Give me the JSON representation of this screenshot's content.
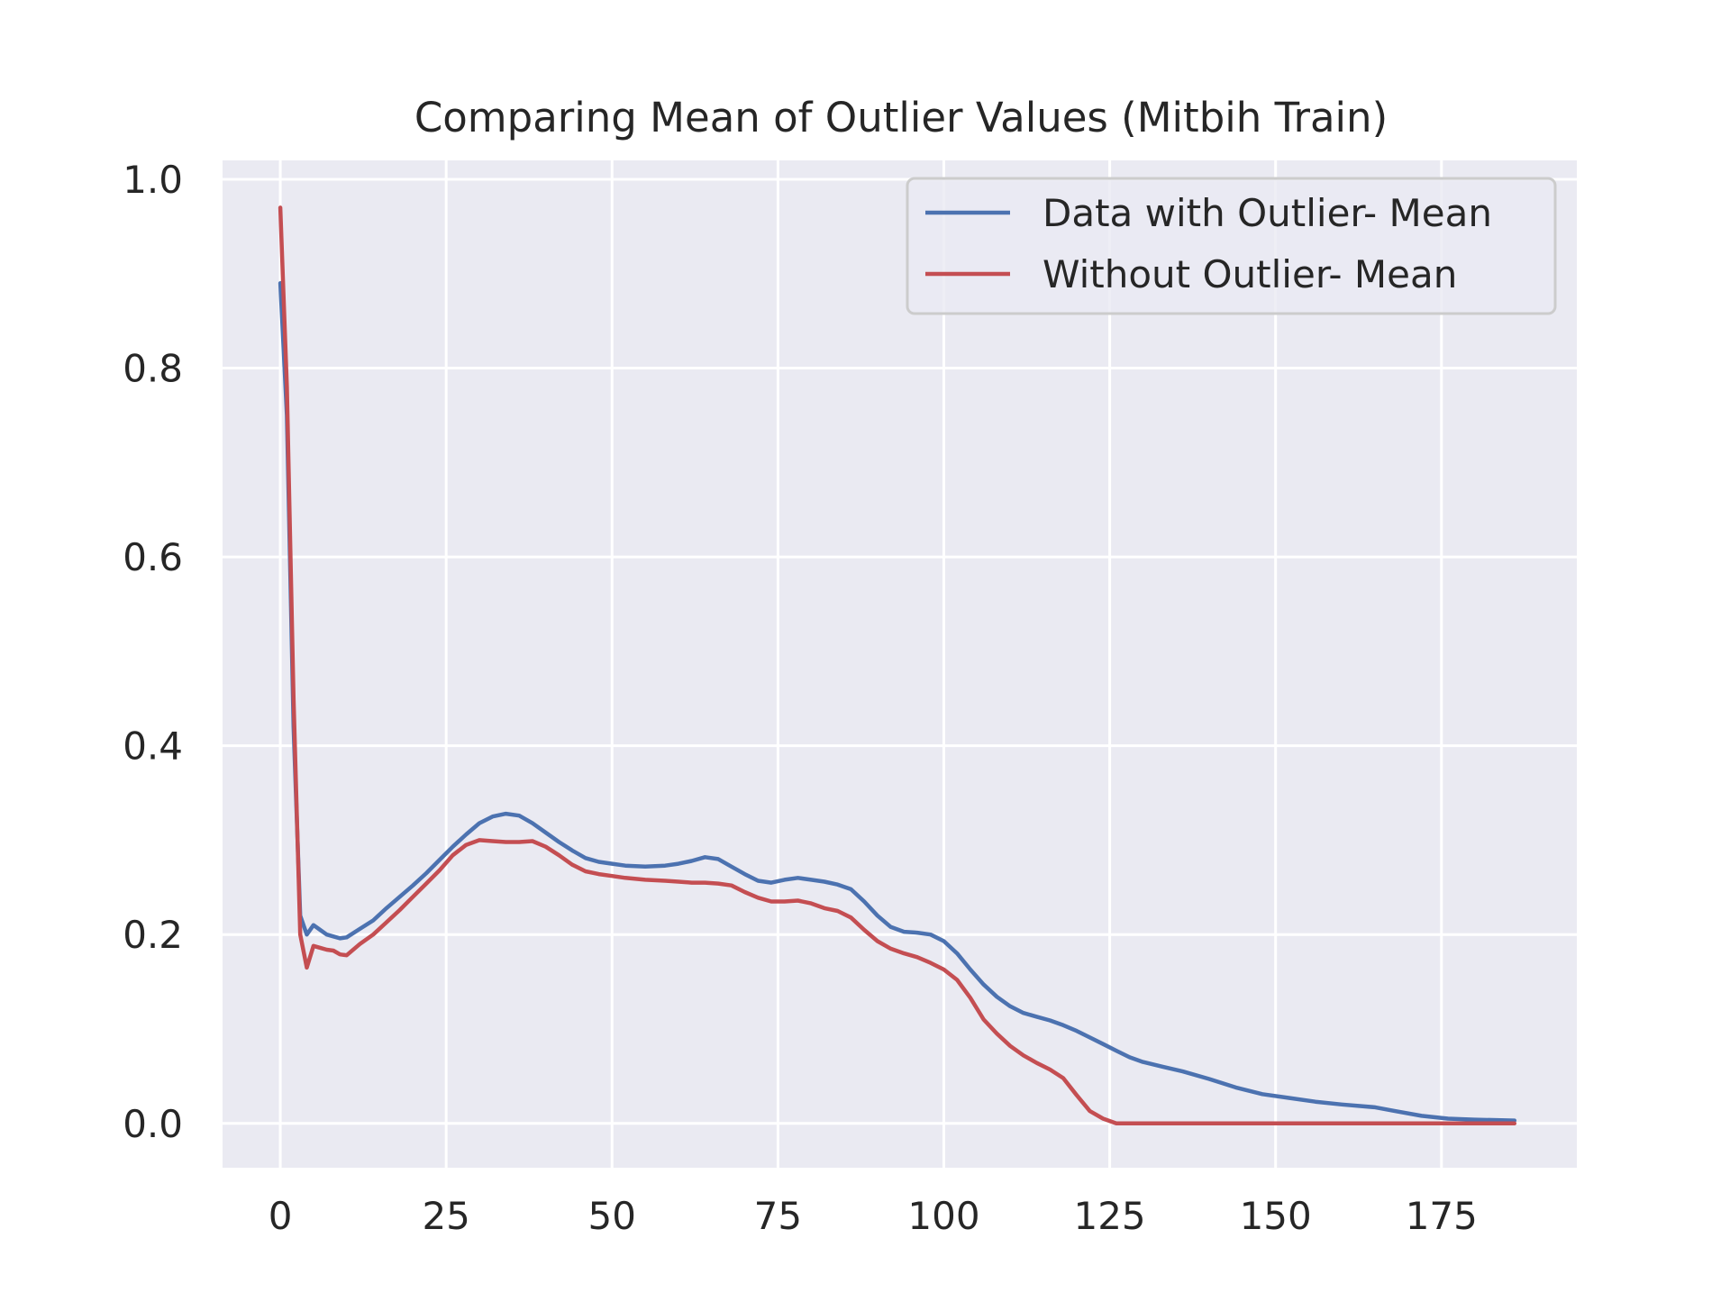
{
  "chart_data": {
    "type": "line",
    "title": "Comparing Mean of Outlier Values (Mitbih Train)",
    "xlabel": "",
    "ylabel": "",
    "xlim": [
      -8.7,
      195.4
    ],
    "ylim": [
      -0.047,
      1.02
    ],
    "xticks": [
      0,
      25,
      50,
      75,
      100,
      125,
      150,
      175
    ],
    "xtick_labels": [
      "0",
      "25",
      "50",
      "75",
      "100",
      "125",
      "150",
      "175"
    ],
    "yticks": [
      0.0,
      0.2,
      0.4,
      0.6,
      0.8,
      1.0
    ],
    "ytick_labels": [
      "0.0",
      "0.2",
      "0.4",
      "0.6",
      "0.8",
      "1.0"
    ],
    "grid": true,
    "legend_position": "top-right",
    "background_color": "#eaeaf2",
    "grid_color": "#ffffff",
    "series": [
      {
        "name": "Data with Outlier- Mean",
        "color": "#4c72b0",
        "x": [
          0,
          1,
          2,
          3,
          4,
          5,
          6,
          7,
          8,
          9,
          10,
          12,
          14,
          16,
          18,
          20,
          22,
          24,
          26,
          28,
          30,
          32,
          34,
          36,
          38,
          40,
          42,
          44,
          46,
          48,
          50,
          52,
          55,
          58,
          60,
          62,
          64,
          66,
          68,
          70,
          72,
          74,
          76,
          78,
          80,
          82,
          84,
          86,
          88,
          90,
          92,
          94,
          96,
          98,
          100,
          102,
          104,
          106,
          108,
          110,
          112,
          114,
          116,
          118,
          120,
          122,
          124,
          126,
          128,
          130,
          133,
          136,
          140,
          144,
          148,
          152,
          156,
          160,
          165,
          168,
          172,
          176,
          180,
          186
        ],
        "y": [
          0.89,
          0.75,
          0.42,
          0.22,
          0.2,
          0.21,
          0.205,
          0.2,
          0.198,
          0.196,
          0.197,
          0.206,
          0.215,
          0.228,
          0.24,
          0.252,
          0.265,
          0.279,
          0.293,
          0.306,
          0.318,
          0.325,
          0.328,
          0.326,
          0.318,
          0.308,
          0.298,
          0.289,
          0.281,
          0.277,
          0.275,
          0.273,
          0.272,
          0.273,
          0.275,
          0.278,
          0.282,
          0.28,
          0.272,
          0.264,
          0.257,
          0.255,
          0.258,
          0.26,
          0.258,
          0.256,
          0.253,
          0.248,
          0.235,
          0.22,
          0.208,
          0.203,
          0.202,
          0.2,
          0.193,
          0.18,
          0.163,
          0.147,
          0.134,
          0.124,
          0.117,
          0.113,
          0.109,
          0.104,
          0.098,
          0.091,
          0.084,
          0.077,
          0.07,
          0.065,
          0.06,
          0.055,
          0.047,
          0.038,
          0.031,
          0.027,
          0.023,
          0.02,
          0.017,
          0.013,
          0.008,
          0.005,
          0.004,
          0.003
        ]
      },
      {
        "name": "Without Outlier- Mean",
        "color": "#c44e52",
        "x": [
          0,
          1,
          2,
          3,
          4,
          5,
          6,
          7,
          8,
          9,
          10,
          12,
          14,
          16,
          18,
          20,
          22,
          24,
          26,
          28,
          30,
          32,
          34,
          36,
          38,
          40,
          42,
          44,
          46,
          48,
          50,
          52,
          55,
          58,
          60,
          62,
          64,
          66,
          68,
          70,
          72,
          74,
          76,
          78,
          80,
          82,
          84,
          86,
          88,
          90,
          92,
          94,
          96,
          98,
          100,
          102,
          104,
          106,
          108,
          110,
          112,
          114,
          116,
          118,
          120,
          122,
          124,
          126,
          186
        ],
        "y": [
          0.97,
          0.78,
          0.45,
          0.2,
          0.165,
          0.188,
          0.186,
          0.184,
          0.183,
          0.179,
          0.178,
          0.19,
          0.2,
          0.213,
          0.226,
          0.24,
          0.254,
          0.268,
          0.284,
          0.295,
          0.3,
          0.299,
          0.298,
          0.298,
          0.299,
          0.293,
          0.284,
          0.274,
          0.267,
          0.264,
          0.262,
          0.26,
          0.258,
          0.257,
          0.256,
          0.255,
          0.255,
          0.254,
          0.252,
          0.245,
          0.239,
          0.235,
          0.235,
          0.236,
          0.233,
          0.228,
          0.225,
          0.218,
          0.205,
          0.193,
          0.185,
          0.18,
          0.176,
          0.17,
          0.163,
          0.152,
          0.133,
          0.11,
          0.095,
          0.082,
          0.072,
          0.064,
          0.057,
          0.048,
          0.03,
          0.013,
          0.005,
          0.0,
          0.0
        ]
      }
    ]
  }
}
